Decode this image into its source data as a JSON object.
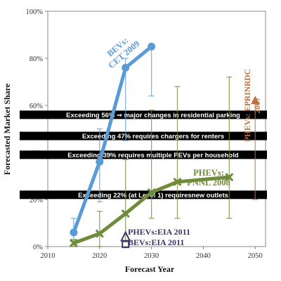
{
  "chart_data": {
    "type": "line",
    "xlabel": "Forecast Year",
    "ylabel": "Forecasted Market Share",
    "xlim": [
      2010,
      2052
    ],
    "ylim": [
      0,
      100
    ],
    "x_ticks": [
      "2010",
      "2020",
      "2030",
      "2040",
      "2050"
    ],
    "y_ticks": [
      "0%",
      "20%",
      "40%",
      "60%",
      "80%",
      "100%"
    ],
    "grid": false,
    "series": [
      {
        "name": "BEVs: CET 2009",
        "label_lines": [
          "BEVs:",
          "CET 2009"
        ],
        "color": "#5b9bd5",
        "marker": "circle",
        "points": [
          {
            "x": 2015,
            "y": 6,
            "err_low": 2,
            "err_high": 12
          },
          {
            "x": 2020,
            "y": 36,
            "err_low": 19,
            "err_high": 50
          },
          {
            "x": 2025,
            "y": 76,
            "err_low": 45,
            "err_high": 80
          },
          {
            "x": 2030,
            "y": 85,
            "err_low": 64,
            "err_high": 85
          }
        ]
      },
      {
        "name": "PHEVs: PNNL 2008",
        "label_lines": [
          "PHEVs:",
          "PNNL 2008"
        ],
        "color": "#6e8c3a",
        "marker": "x",
        "points": [
          {
            "x": 2015,
            "y": 1.5,
            "err_low": 0,
            "err_high": 3
          },
          {
            "x": 2020,
            "y": 5.5,
            "err_low": 0,
            "err_high": 15
          },
          {
            "x": 2025,
            "y": 14,
            "err_low": 2,
            "err_high": 37
          },
          {
            "x": 2030,
            "y": 23,
            "err_low": 12,
            "err_high": 58
          },
          {
            "x": 2035,
            "y": 27.5,
            "err_low": 12,
            "err_high": 68
          },
          {
            "x": 2045,
            "y": 29.5,
            "err_low": 12,
            "err_high": 72
          }
        ]
      },
      {
        "name": "PHEVs: EPRI NRDC 2007",
        "label_lines": [
          "PHEVs: EPRINRDC",
          "2007"
        ],
        "color": "#c0703a",
        "marker": "triangle",
        "points": [
          {
            "x": 2050,
            "y": 62,
            "err_low": 20,
            "err_high": 62
          }
        ]
      },
      {
        "name": "PHEVs:EIA 2011",
        "label": "PHEVs:EIA 2011",
        "color": "#3b3566",
        "marker": "triangle-open",
        "points": [
          {
            "x": 2025,
            "y": 4
          }
        ]
      },
      {
        "name": "BEVs:EIA 2011",
        "label": "BEVs:EIA 2011",
        "color": "#3b3566",
        "marker": "square-open",
        "points": [
          {
            "x": 2025,
            "y": 1
          }
        ]
      }
    ],
    "threshold_bands": [
      {
        "y": 56,
        "text": "Exceeding 56% ⇒ major changes in residential parking"
      },
      {
        "y": 47,
        "text": "Exceeding 47% requires chargers for renters"
      },
      {
        "y": 39,
        "text": "Exceeding 39% requires multiple PEVs per household"
      },
      {
        "y": 22,
        "text": "Exceeding 22% (at Level 1) requiresnew outlets"
      }
    ]
  }
}
